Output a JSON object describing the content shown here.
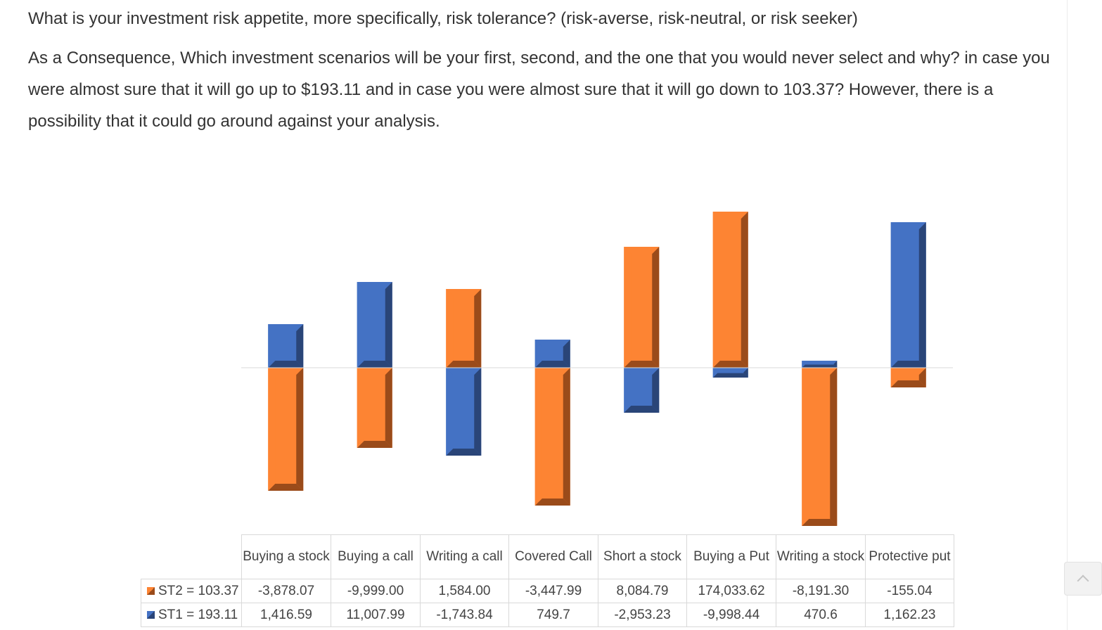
{
  "question": {
    "line1": "What is your investment risk appetite, more specifically, risk tolerance? (risk-averse, risk-neutral, or risk seeker)",
    "paragraph2": "As a Consequence, Which investment scenarios will be your first, second, and the one that you would never select and why? in case you were almost sure that it will go up to $193.11 and in case you were almost sure that it will go down to 103.37? However, there is a possibility that it could go around against your analysis."
  },
  "colors": {
    "st2": "#fd8433",
    "st2_dark": "#9a4b1a",
    "st1": "#4472c4",
    "st1_dark": "#2a4578"
  },
  "chart_data": {
    "type": "bar",
    "categories": [
      "Buying a stock",
      "Buying a call",
      "Writing a call",
      "Covered Call",
      "Short a stock",
      "Buying a Put",
      "Writing a stock",
      "Protective put"
    ],
    "series": [
      {
        "name": "ST2 = 103.37",
        "values": [
          -3878.07,
          -9999.0,
          1584.0,
          -3447.99,
          8084.79,
          174033.62,
          -8191.3,
          -155.04
        ],
        "display": [
          "-3,878.07",
          "-9,999.00",
          "1,584.00",
          "-3,447.99",
          "8,084.79",
          "174,033.62",
          "-8,191.30",
          "-155.04"
        ]
      },
      {
        "name": "ST1 = 193.11",
        "values": [
          1416.59,
          11007.99,
          -1743.84,
          749.7,
          -2953.23,
          -9998.44,
          470.6,
          1162.23
        ],
        "display": [
          "1,416.59",
          "11,007.99",
          "-1,743.84",
          "749.7",
          "-2,953.23",
          "-9,998.44",
          "470.6",
          "1,162.23"
        ]
      }
    ],
    "grid": false,
    "legend": "table"
  }
}
